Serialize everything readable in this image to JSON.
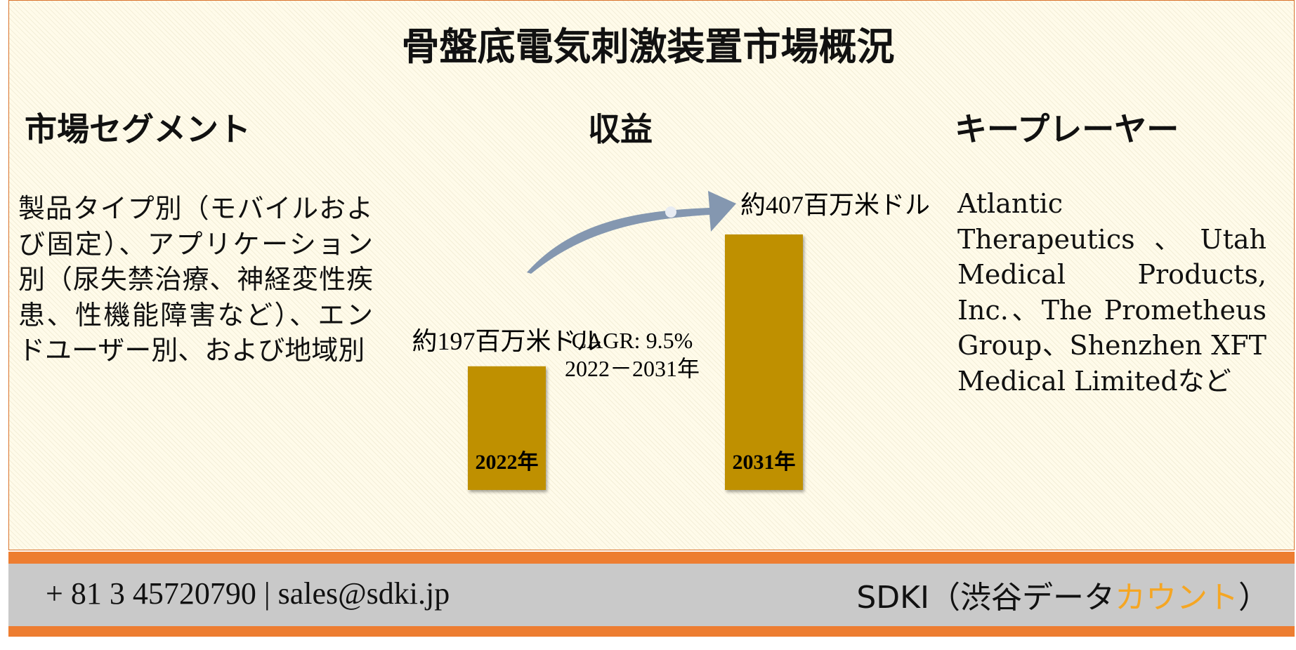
{
  "header": {
    "title": "骨盤底電気刺激装置市場概況"
  },
  "segments": {
    "heading": "市場セグメント",
    "text": "製品タイプ別（モバイルおよび固定）、アプリケーション別（尿失禁治療、神経変性疾患、性機能障害など）、エンドユーザー別、および地域別"
  },
  "chart_data": {
    "type": "bar",
    "title": "収益",
    "categories": [
      "2022年",
      "2031年"
    ],
    "values": [
      197,
      407
    ],
    "value_labels": [
      "約197百万米ドル",
      "約407百万米ドル"
    ],
    "color": "#bf9000",
    "annotations": [
      "CAGR: 9.5%",
      "2022－2031年"
    ]
  },
  "players": {
    "heading": "キープレーヤー",
    "text": "Atlantic Therapeutics、Utah Medical Products, Inc.、The Prometheus Group、Shenzhen XFT Medical Limitedなど"
  },
  "footer": {
    "contact": "+ 81 3 45720790 | sales@sdki.jp",
    "brand": "SDKI（渋谷データ",
    "brand_highlight": "カウント",
    "brand_end": "）"
  }
}
